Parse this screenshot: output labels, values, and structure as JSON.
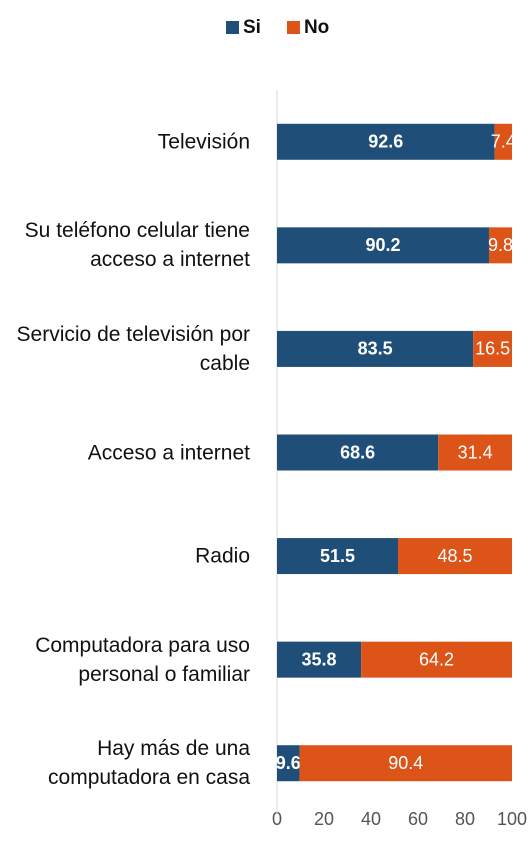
{
  "chart_data": {
    "type": "stacked_bar_horizontal",
    "categories": [
      "Televisión",
      "Su teléfono celular tiene acceso a internet",
      "Servicio de televisión por cable",
      "Acceso a internet",
      "Radio",
      "Computadora para uso personal o familiar",
      "Hay más de una computadora en casa"
    ],
    "series": [
      {
        "name": "Si",
        "color": "#1f4e79",
        "values": [
          92.6,
          90.2,
          83.5,
          68.6,
          51.5,
          35.8,
          9.6
        ]
      },
      {
        "name": "No",
        "color": "#dd5419",
        "values": [
          7.4,
          9.8,
          16.5,
          31.4,
          48.5,
          64.2,
          90.4
        ]
      }
    ],
    "xlim": [
      0,
      100
    ],
    "xticks": [
      0,
      20,
      40,
      60,
      80,
      100
    ],
    "legend": "top"
  }
}
